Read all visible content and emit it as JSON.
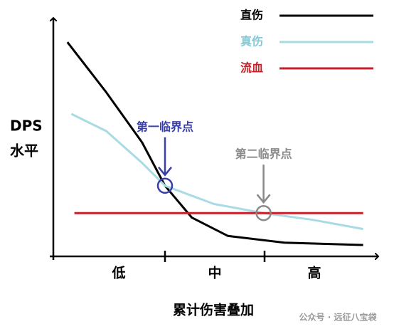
{
  "chart_data": {
    "type": "line",
    "y_label": [
      "DPS",
      "水平"
    ],
    "x_label": "累计伤害叠加",
    "x_regions": [
      "低",
      "中",
      "高"
    ],
    "xlim": [
      0,
      3
    ],
    "xticks": [
      1,
      2
    ],
    "ylim": [
      0,
      10
    ],
    "series": [
      {
        "name": "直伤",
        "color": "#000000",
        "x": [
          0.02,
          0.41,
          0.77,
          1.0,
          1.27,
          1.63,
          2.2,
          2.99
        ],
        "values": [
          9.4,
          7.2,
          5.0,
          3.1,
          1.7,
          0.9,
          0.6,
          0.5
        ]
      },
      {
        "name": "真伤",
        "color": "#a8dbe4",
        "x": [
          0.06,
          0.41,
          0.77,
          1.0,
          1.49,
          1.99,
          2.49,
          2.99
        ],
        "values": [
          6.25,
          5.5,
          4.1,
          3.1,
          2.3,
          1.9,
          1.6,
          1.2
        ]
      },
      {
        "name": "流血",
        "color": "#c8202a",
        "x": [
          0.09,
          2.99
        ],
        "values": [
          1.9,
          1.9
        ]
      }
    ],
    "annotations": [
      {
        "text": "第一临界点",
        "x": 1.0,
        "y": 3.1,
        "color": "#3a3fa8"
      },
      {
        "text": "第二临界点",
        "x": 1.99,
        "y": 1.9,
        "color": "#8a8a8a"
      }
    ],
    "watermark": "公众号 · 远征八宝袋"
  }
}
